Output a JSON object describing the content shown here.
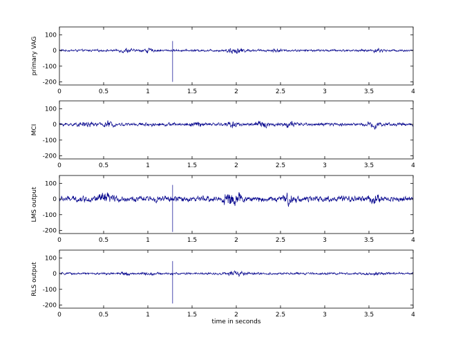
{
  "figure": {
    "xlabel": "time in seconds"
  },
  "chart_data": [
    {
      "type": "line",
      "ylabel": "primary VAG",
      "xlim": [
        0,
        4
      ],
      "ylim": [
        -220,
        150
      ],
      "xticks": [
        0,
        0.5,
        1,
        1.5,
        2,
        2.5,
        3,
        3.5,
        4
      ],
      "xtick_labels": [
        "0",
        "0.5",
        "1",
        "1.5",
        "2",
        "2.5",
        "3",
        "3.5",
        "4"
      ],
      "yticks": [
        100,
        0,
        -100,
        -200
      ],
      "ytick_labels": [
        "100",
        "0",
        "-100",
        "-200"
      ],
      "line_color": "#00008b",
      "noise_amplitude": 6,
      "bursts": [
        {
          "t": 0.75,
          "amp": 10
        },
        {
          "t": 1.0,
          "amp": 8
        },
        {
          "t": 1.95,
          "amp": 14
        },
        {
          "t": 2.05,
          "amp": 10
        },
        {
          "t": 2.45,
          "amp": 6
        },
        {
          "t": 3.6,
          "amp": 8
        }
      ],
      "spike": {
        "t": 1.28,
        "max": 60,
        "min": -200
      }
    },
    {
      "type": "line",
      "ylabel": "MCI",
      "xlim": [
        0,
        4
      ],
      "ylim": [
        -220,
        150
      ],
      "xticks": [
        0,
        0.5,
        1,
        1.5,
        2,
        2.5,
        3,
        3.5,
        4
      ],
      "xtick_labels": [
        "0",
        "0.5",
        "1",
        "1.5",
        "2",
        "2.5",
        "3",
        "3.5",
        "4"
      ],
      "yticks": [
        100,
        0,
        -100,
        -200
      ],
      "ytick_labels": [
        "100",
        "0",
        "-100",
        "-200"
      ],
      "line_color": "#00008b",
      "noise_amplitude": 9,
      "bursts": [
        {
          "t": 0.3,
          "amp": 10
        },
        {
          "t": 0.55,
          "amp": 12
        },
        {
          "t": 1.55,
          "amp": 10
        },
        {
          "t": 1.95,
          "amp": 18
        },
        {
          "t": 2.3,
          "amp": 16
        },
        {
          "t": 2.6,
          "amp": 10
        },
        {
          "t": 3.55,
          "amp": 14
        }
      ],
      "spike": null
    },
    {
      "type": "line",
      "ylabel": "LMS output",
      "xlim": [
        0,
        4
      ],
      "ylim": [
        -220,
        150
      ],
      "xticks": [
        0,
        0.5,
        1,
        1.5,
        2,
        2.5,
        3,
        3.5,
        4
      ],
      "xtick_labels": [
        "0",
        "0.5",
        "1",
        "1.5",
        "2",
        "2.5",
        "3",
        "3.5",
        "4"
      ],
      "yticks": [
        100,
        0,
        -100,
        -200
      ],
      "ytick_labels": [
        "100",
        "0",
        "-100",
        "-200"
      ],
      "line_color": "#00008b",
      "noise_amplitude": 16,
      "bursts": [
        {
          "t": 0.45,
          "amp": 16
        },
        {
          "t": 0.55,
          "amp": 18
        },
        {
          "t": 1.9,
          "amp": 24
        },
        {
          "t": 2.0,
          "amp": 22
        },
        {
          "t": 2.6,
          "amp": 22
        },
        {
          "t": 3.55,
          "amp": 16
        }
      ],
      "spike": {
        "t": 1.28,
        "max": 90,
        "min": -210
      }
    },
    {
      "type": "line",
      "ylabel": "RLS output",
      "xlim": [
        0,
        4
      ],
      "ylim": [
        -220,
        150
      ],
      "xticks": [
        0,
        0.5,
        1,
        1.5,
        2,
        2.5,
        3,
        3.5,
        4
      ],
      "xtick_labels": [
        "0",
        "0.5",
        "1",
        "1.5",
        "2",
        "2.5",
        "3",
        "3.5",
        "4"
      ],
      "yticks": [
        100,
        0,
        -100,
        -200
      ],
      "ytick_labels": [
        "100",
        "0",
        "-100",
        "-200"
      ],
      "line_color": "#00008b",
      "noise_amplitude": 6,
      "bursts": [
        {
          "t": 0.75,
          "amp": 8
        },
        {
          "t": 1.0,
          "amp": 7
        },
        {
          "t": 1.95,
          "amp": 10
        },
        {
          "t": 2.05,
          "amp": 8
        },
        {
          "t": 3.6,
          "amp": 6
        }
      ],
      "spike": {
        "t": 1.28,
        "max": 80,
        "min": -190
      }
    }
  ]
}
